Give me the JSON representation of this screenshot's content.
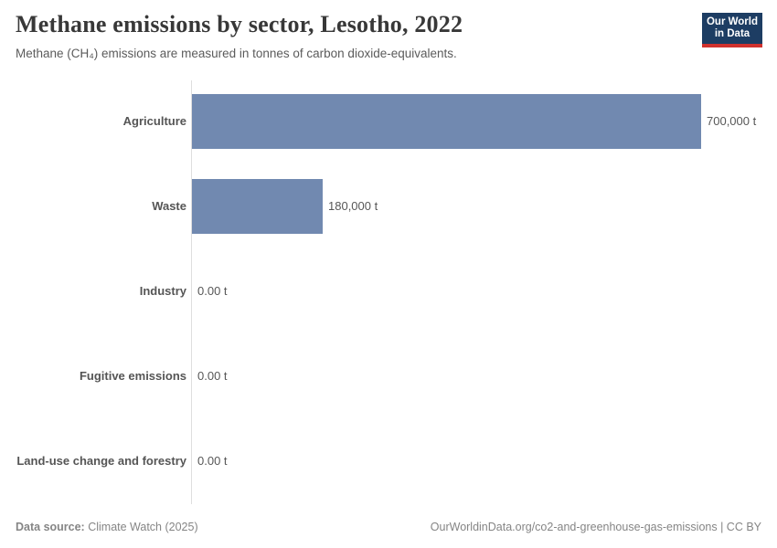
{
  "header": {
    "title": "Methane emissions by sector, Lesotho, 2022",
    "subtitle": "Methane (CH₄) emissions are measured in tonnes of carbon dioxide-equivalents.",
    "logo_line1": "Our World",
    "logo_line2": "in Data"
  },
  "chart_data": {
    "type": "bar",
    "orientation": "horizontal",
    "title": "Methane emissions by sector, Lesotho, 2022",
    "subtitle": "Methane (CH₄) emissions are measured in tonnes of carbon dioxide-equivalents.",
    "categories": [
      "Agriculture",
      "Waste",
      "Industry",
      "Fugitive emissions",
      "Land-use change and forestry"
    ],
    "values": [
      700000,
      180000,
      0,
      0,
      0
    ],
    "value_labels": [
      "700,000 t",
      "180,000 t",
      "0.00 t",
      "0.00 t",
      "0.00 t"
    ],
    "unit": "tonnes of CO₂-equivalents",
    "xlim": [
      0,
      700000
    ],
    "grid": false,
    "legend": "none",
    "bar_color": "#7189b0"
  },
  "footer": {
    "source_label": "Data source:",
    "source_value": " Climate Watch (2025)",
    "right_text": "OurWorldinData.org/co2-and-greenhouse-gas-emissions | CC BY"
  },
  "colors": {
    "bar": "#7189b0",
    "axis_line": "#dedede",
    "title_text": "#383838",
    "subtitle_text": "#5b5b5b",
    "tick_label": "#555555",
    "footer_text": "#858585",
    "logo_bg": "#1d3d63",
    "logo_accent": "#d0312d"
  }
}
